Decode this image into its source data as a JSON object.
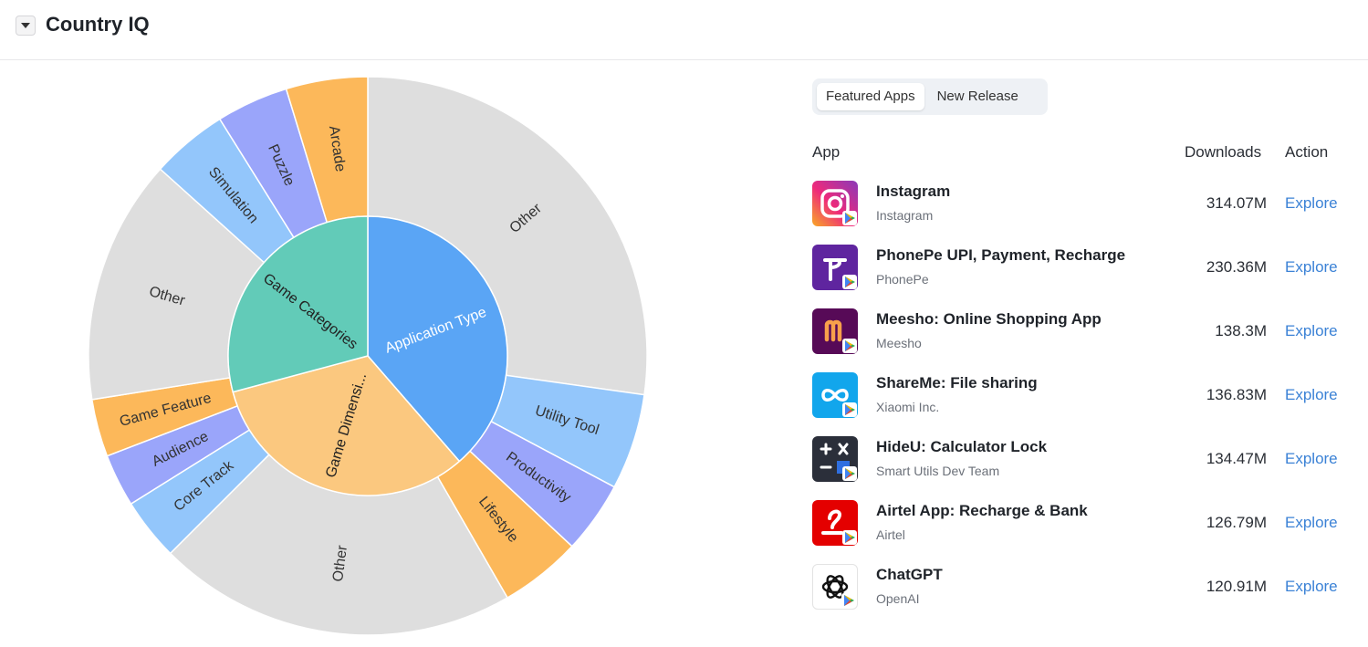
{
  "header": {
    "title": "Country IQ"
  },
  "tabs": [
    {
      "label": "Featured Apps",
      "active": true
    },
    {
      "label": "New Release",
      "active": false
    }
  ],
  "table": {
    "columns": {
      "app": "App",
      "downloads": "Downloads",
      "action": "Action"
    },
    "rows": [
      {
        "name": "Instagram",
        "developer": "Instagram",
        "downloads": "314.07M",
        "action": "Explore",
        "icon": "instagram-icon"
      },
      {
        "name": "PhonePe UPI, Payment, Recharge",
        "developer": "PhonePe",
        "downloads": "230.36M",
        "action": "Explore",
        "icon": "phonepe-icon"
      },
      {
        "name": "Meesho: Online Shopping App",
        "developer": "Meesho",
        "downloads": "138.3M",
        "action": "Explore",
        "icon": "meesho-icon"
      },
      {
        "name": "ShareMe: File sharing",
        "developer": "Xiaomi Inc.",
        "downloads": "136.83M",
        "action": "Explore",
        "icon": "shareme-icon"
      },
      {
        "name": "HideU: Calculator Lock",
        "developer": "Smart Utils Dev Team",
        "downloads": "134.47M",
        "action": "Explore",
        "icon": "calculator-icon"
      },
      {
        "name": "Airtel App: Recharge & Bank",
        "developer": "Airtel",
        "downloads": "126.79M",
        "action": "Explore",
        "icon": "airtel-icon"
      },
      {
        "name": "ChatGPT",
        "developer": "OpenAI",
        "downloads": "120.91M",
        "action": "Explore",
        "icon": "chatgpt-icon"
      }
    ]
  },
  "chart_data": {
    "type": "sunburst",
    "inner": [
      {
        "label": "Application Type",
        "start": 0,
        "end": 139,
        "color": "#5aa5f5"
      },
      {
        "label": "Game Dimensi...",
        "start": 139,
        "end": 255,
        "color": "#fbc87f"
      },
      {
        "label": "Game Categories",
        "start": 255,
        "end": 360,
        "color": "#62cbb8"
      }
    ],
    "outer": [
      {
        "label": "Other",
        "start": 0,
        "end": 98,
        "color": "#dedede"
      },
      {
        "label": "Utility Tool",
        "start": 98,
        "end": 118,
        "color": "#93c6fb"
      },
      {
        "label": "Productivity",
        "start": 118,
        "end": 133,
        "color": "#9aa5fa"
      },
      {
        "label": "Lifestyle",
        "start": 133,
        "end": 150,
        "color": "#fcb85a"
      },
      {
        "label": "Other",
        "start": 150,
        "end": 225,
        "color": "#dedede"
      },
      {
        "label": "Core Track",
        "start": 225,
        "end": 238,
        "color": "#93c6fb"
      },
      {
        "label": "Audience",
        "start": 238,
        "end": 249,
        "color": "#9aa5fa"
      },
      {
        "label": "Game Feature",
        "start": 249,
        "end": 261,
        "color": "#fcb85a"
      },
      {
        "label": "Other",
        "start": 261,
        "end": 312,
        "color": "#dedede"
      },
      {
        "label": "Simulation",
        "start": 312,
        "end": 328,
        "color": "#93c6fb"
      },
      {
        "label": "Puzzle",
        "start": 328,
        "end": 343,
        "color": "#9aa5fa"
      },
      {
        "label": "Arcade",
        "start": 343,
        "end": 360,
        "color": "#fcb85a"
      }
    ]
  }
}
